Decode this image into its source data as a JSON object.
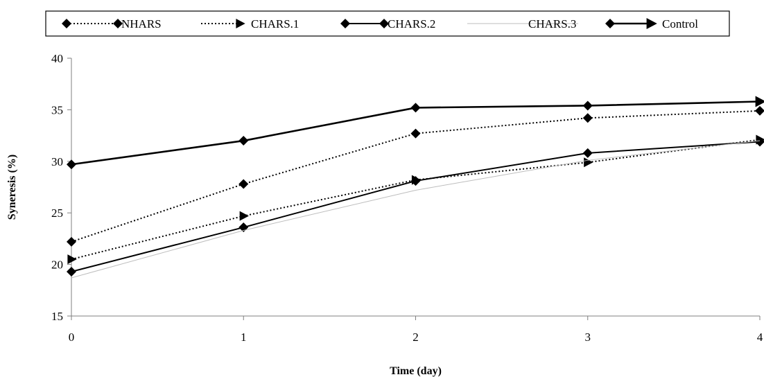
{
  "chart_data": {
    "type": "line",
    "title": "",
    "xlabel": "Time (day)",
    "ylabel": "Syneresis (%)",
    "x": [
      0,
      1,
      2,
      3,
      4
    ],
    "xlim": [
      0,
      4
    ],
    "ylim": [
      15,
      40
    ],
    "yticks": [
      15,
      20,
      25,
      30,
      35,
      40
    ],
    "xticks": [
      0,
      1,
      2,
      3,
      4
    ],
    "grid": false,
    "legend_position": "top",
    "series": [
      {
        "name": "NHARS",
        "values": [
          22.2,
          27.8,
          32.7,
          34.2,
          34.9
        ],
        "line_style": "dotted",
        "line_color": "#000000",
        "marker": "diamond",
        "line_weight": "medium"
      },
      {
        "name": "CHARS.1",
        "values": [
          20.5,
          24.7,
          28.2,
          29.9,
          32.1
        ],
        "line_style": "dotted",
        "line_color": "#000000",
        "marker": "triangle",
        "line_weight": "medium"
      },
      {
        "name": "CHARS.2",
        "values": [
          19.3,
          23.6,
          28.1,
          30.8,
          31.9
        ],
        "line_style": "solid",
        "line_color": "#000000",
        "marker": "diamond",
        "line_weight": "medium"
      },
      {
        "name": "CHARS.3",
        "values": [
          18.7,
          23.3,
          27.2,
          30.1,
          32.0
        ],
        "line_style": "solid",
        "line_color": "#bdbdbd",
        "marker": "none",
        "line_weight": "thin"
      },
      {
        "name": "Control",
        "values": [
          29.7,
          32.0,
          35.2,
          35.4,
          35.8
        ],
        "line_style": "solid",
        "line_color": "#000000",
        "marker": "mixed",
        "line_weight": "thick"
      }
    ]
  }
}
